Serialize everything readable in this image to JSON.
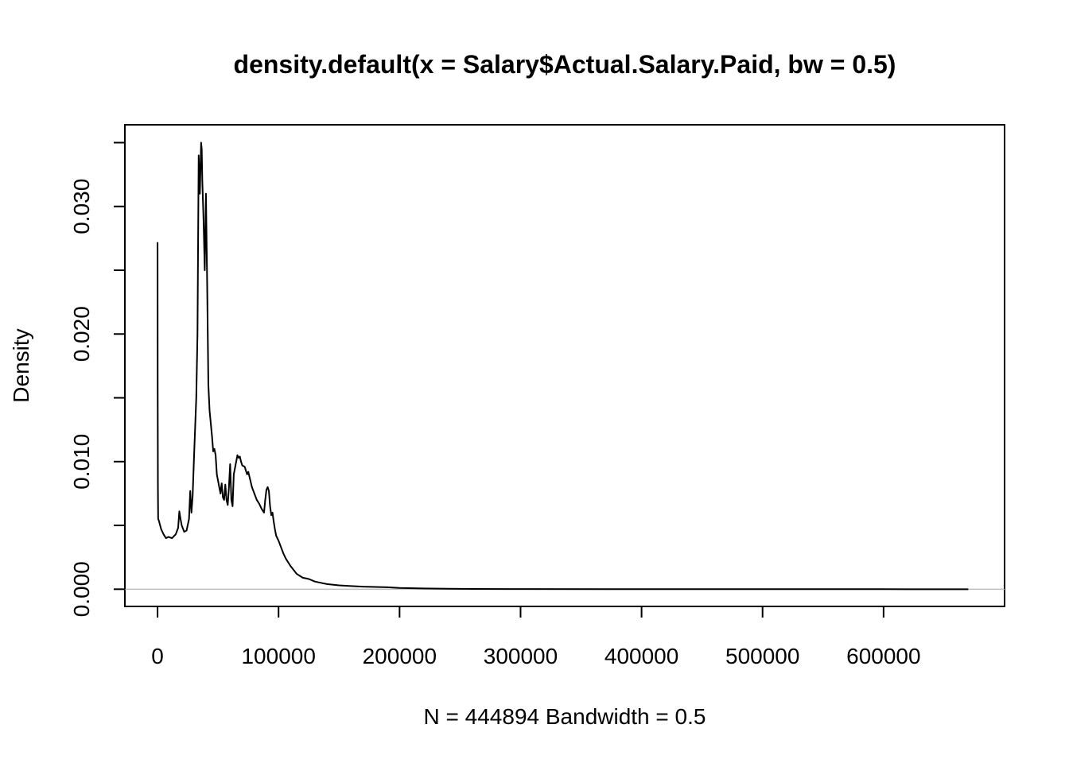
{
  "chart_data": {
    "type": "line",
    "title": "density.default(x = Salary$Actual.Salary.Paid, bw = 0.5)",
    "xlabel": "N = 444894   Bandwidth = 0.5",
    "ylabel": "Density",
    "xlim": [
      -27000,
      700000
    ],
    "ylim": [
      -0.00135,
      0.0364
    ],
    "xticks": [
      0,
      100000,
      200000,
      300000,
      400000,
      500000,
      600000
    ],
    "xtick_labels": [
      "0",
      "100000",
      "200000",
      "300000",
      "400000",
      "500000",
      "600000"
    ],
    "yticks": [
      0.0,
      0.005,
      0.01,
      0.015,
      0.02,
      0.025,
      0.03,
      0.035
    ],
    "ytick_labels": [
      "0.000",
      "",
      "0.010",
      "",
      "0.020",
      "",
      "0.030",
      ""
    ],
    "grid": false,
    "zero_line": true,
    "colors": {
      "line": "#000000",
      "zero_line": "#bebebe"
    },
    "series": [
      {
        "x": [
          0,
          100,
          300,
          500,
          1000,
          3000,
          5000,
          7000,
          9000,
          12000,
          15000,
          17000,
          18000,
          19000,
          20000,
          22000,
          24000,
          26000,
          27000,
          28000,
          29000,
          30000,
          31000,
          32000,
          33000,
          34000,
          35000,
          35500,
          36000,
          36500,
          37000,
          38000,
          39000,
          40000,
          41000,
          41500,
          42000,
          43000,
          44000,
          45000,
          46000,
          47000,
          48000,
          49000,
          50000,
          51000,
          52000,
          53000,
          54000,
          55000,
          56000,
          57000,
          58000,
          59000,
          60000,
          61000,
          62000,
          63000,
          64000,
          65000,
          66000,
          67000,
          68000,
          69000,
          70000,
          72000,
          74000,
          75000,
          76000,
          78000,
          80000,
          82000,
          84000,
          86000,
          88000,
          89000,
          90000,
          91000,
          92000,
          93000,
          94000,
          95000,
          96000,
          97000,
          98000,
          100000,
          102000,
          104000,
          106000,
          108000,
          110000,
          115000,
          120000,
          125000,
          130000,
          135000,
          140000,
          150000,
          160000,
          170000,
          180000,
          190000,
          200000,
          220000,
          240000,
          260000,
          300000,
          400000,
          500000,
          600000,
          670000
        ],
        "y": [
          0.0272,
          0.016,
          0.008,
          0.0055,
          0.0054,
          0.0047,
          0.0043,
          0.004,
          0.0041,
          0.004,
          0.0043,
          0.0048,
          0.0061,
          0.0055,
          0.005,
          0.0045,
          0.0046,
          0.0055,
          0.0077,
          0.006,
          0.0073,
          0.01,
          0.0125,
          0.015,
          0.02,
          0.034,
          0.031,
          0.033,
          0.035,
          0.0345,
          0.032,
          0.029,
          0.025,
          0.031,
          0.024,
          0.02,
          0.016,
          0.014,
          0.013,
          0.012,
          0.0108,
          0.011,
          0.0105,
          0.009,
          0.0085,
          0.008,
          0.0075,
          0.0083,
          0.0072,
          0.007,
          0.0082,
          0.007,
          0.0066,
          0.008,
          0.0098,
          0.007,
          0.0065,
          0.009,
          0.0095,
          0.01,
          0.0105,
          0.0103,
          0.0104,
          0.01,
          0.0097,
          0.0096,
          0.009,
          0.0092,
          0.0088,
          0.008,
          0.0075,
          0.007,
          0.0067,
          0.0063,
          0.006,
          0.007,
          0.0078,
          0.008,
          0.0077,
          0.0065,
          0.0058,
          0.006,
          0.0053,
          0.0047,
          0.0042,
          0.0038,
          0.0033,
          0.0028,
          0.0024,
          0.0021,
          0.0018,
          0.0012,
          0.0009,
          0.0008,
          0.0006,
          0.0005,
          0.0004,
          0.0003,
          0.00025,
          0.0002,
          0.00018,
          0.00015,
          0.0001,
          6e-05,
          4e-05,
          2e-05,
          1e-05,
          5e-06,
          2e-06,
          1e-06,
          0.0
        ]
      }
    ]
  }
}
